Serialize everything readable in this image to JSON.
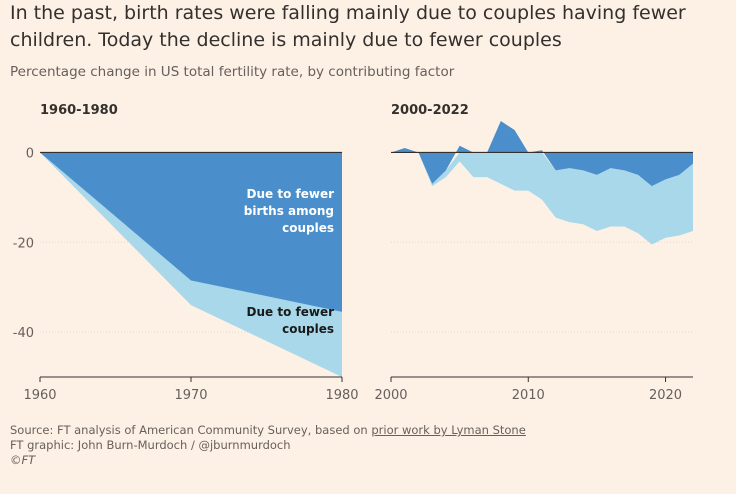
{
  "title": "In the past, birth rates were falling mainly due to couples having fewer children. Today the decline is mainly due to fewer couples",
  "subtitle": "Percentage change in US total fertility rate, by contributing factor",
  "colors": {
    "background": "#fdf1e5",
    "fewer_births_among_couples": "#4a8fcb",
    "fewer_couples": "#a8d8ea",
    "baseline": "#33302e",
    "grid": "#e6d9ce"
  },
  "chart_data": [
    {
      "type": "area",
      "title": "1960-1980",
      "x": [
        1960,
        1970,
        1980
      ],
      "ylim": [
        -50,
        5
      ],
      "yticks": [
        0,
        -20,
        -40
      ],
      "xticks": [
        1960,
        1970,
        1980
      ],
      "series": [
        {
          "name": "Due to fewer births among couples",
          "values": [
            0,
            -28.5,
            -35.5
          ]
        },
        {
          "name": "Due to fewer couples",
          "values": [
            0,
            -5.5,
            -14.5
          ]
        }
      ],
      "annotations": [
        {
          "text_lines": [
            "Due to fewer",
            "births among",
            "couples"
          ]
        },
        {
          "text_lines": [
            "Due to fewer",
            "couples"
          ]
        }
      ]
    },
    {
      "type": "area",
      "title": "2000-2022",
      "x": [
        2000,
        2001,
        2002,
        2003,
        2004,
        2005,
        2006,
        2007,
        2008,
        2009,
        2010,
        2011,
        2012,
        2013,
        2014,
        2015,
        2016,
        2017,
        2018,
        2019,
        2020,
        2021,
        2022
      ],
      "ylim": [
        -50,
        5
      ],
      "xticks": [
        2000,
        2010,
        2020
      ],
      "series": [
        {
          "name": "Due to fewer births among couples",
          "values": [
            0,
            1,
            0,
            -7,
            -4,
            1.5,
            0,
            0,
            7,
            5,
            0,
            0.5,
            -4,
            -3.5,
            -4,
            -5,
            -3.5,
            -4,
            -5,
            -7.5,
            -6,
            -5,
            -2.5
          ]
        },
        {
          "name": "Due to fewer couples",
          "values": [
            0,
            0,
            0,
            -0.5,
            -1.5,
            -2,
            -5.5,
            -5.5,
            -7,
            -8.5,
            -8.5,
            -10.5,
            -10.5,
            -12,
            -12,
            -12.5,
            -13,
            -12.5,
            -13,
            -13,
            -13,
            -13.5,
            -15
          ]
        }
      ]
    }
  ],
  "footer": {
    "source_prefix": "Source: FT analysis of American Community Survey, based on",
    "source_link": "prior work by Lyman Stone",
    "credit": "FT graphic: John Burn-Murdoch / @jburnmurdoch",
    "copyright": "©FT"
  }
}
